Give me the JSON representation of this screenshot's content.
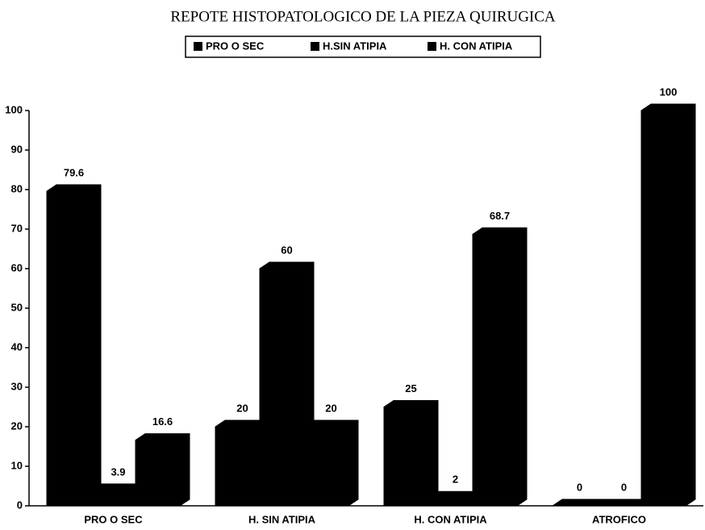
{
  "chart_data": {
    "type": "bar3d",
    "title": "REPOTE HISTOPATOLOGICO DE LA PIEZA QUIRUGICA",
    "categories": [
      "PRO O SEC",
      "H. SIN ATIPIA",
      "H. CON ATIPIA",
      "ATROFICO"
    ],
    "series": [
      {
        "name": "PRO O SEC",
        "color": "#000000",
        "values": [
          79.6,
          20,
          25,
          0
        ]
      },
      {
        "name": "H.SIN ATIPIA",
        "color": "#000000",
        "values": [
          3.9,
          60,
          2,
          0
        ]
      },
      {
        "name": "H. CON ATIPIA",
        "color": "#000000",
        "values": [
          16.6,
          20,
          68.7,
          100
        ]
      }
    ],
    "ylim": [
      0,
      100
    ],
    "yticks": [
      0,
      10,
      20,
      30,
      40,
      50,
      60,
      70,
      80,
      90,
      100
    ],
    "grid": false,
    "legend": "top"
  }
}
